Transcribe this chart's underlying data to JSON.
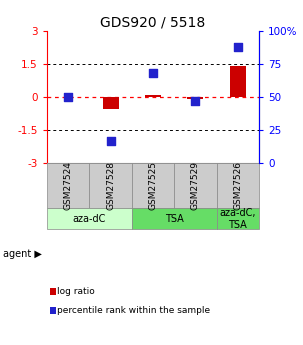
{
  "title": "GDS920 / 5518",
  "samples": [
    "GSM27524",
    "GSM27528",
    "GSM27525",
    "GSM27529",
    "GSM27526"
  ],
  "log_ratios": [
    0.0,
    -0.55,
    0.12,
    -0.07,
    1.42
  ],
  "percentile_ranks": [
    50,
    17,
    68,
    47,
    88
  ],
  "ylim_left": [
    -3,
    3
  ],
  "yticks_left": [
    -3,
    -1.5,
    0,
    1.5,
    3
  ],
  "ytick_labels_left": [
    "-3",
    "-1.5",
    "0",
    "1.5",
    "3"
  ],
  "ytick_labels_right": [
    "0",
    "25",
    "50",
    "75",
    "100%"
  ],
  "bar_color": "#cc0000",
  "dot_color": "#2222cc",
  "agent_groups": [
    {
      "label": "aza-dC",
      "span": [
        0,
        2
      ],
      "color": "#ccffcc"
    },
    {
      "label": "TSA",
      "span": [
        2,
        4
      ],
      "color": "#66dd66"
    },
    {
      "label": "aza-dC,\nTSA",
      "span": [
        4,
        5
      ],
      "color": "#66dd66"
    }
  ],
  "legend_items": [
    {
      "color": "#cc0000",
      "label": "log ratio"
    },
    {
      "color": "#2222cc",
      "label": "percentile rank within the sample"
    }
  ],
  "sample_box_color": "#cccccc",
  "sample_box_edgecolor": "#888888",
  "background_color": "#ffffff"
}
